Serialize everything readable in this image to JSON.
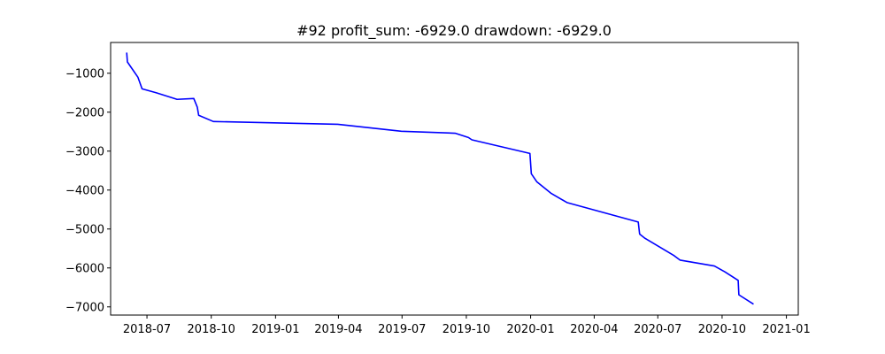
{
  "chart_data": {
    "type": "line",
    "title": "#92   profit_sum: -6929.0 drawdown: -6929.0",
    "xlabel": "",
    "ylabel": "",
    "grid": false,
    "legend": "none",
    "line_color": "#0000ff",
    "xlim": [
      "2018-05-10",
      "2021-01-18"
    ],
    "ylim": [
      -7210,
      -210
    ],
    "x_ticks": [
      "2018-07",
      "2018-10",
      "2019-01",
      "2019-04",
      "2019-07",
      "2019-10",
      "2020-01",
      "2020-04",
      "2020-07",
      "2020-10",
      "2021-01"
    ],
    "y_ticks": [
      -1000,
      -2000,
      -3000,
      -4000,
      -5000,
      -6000,
      -7000
    ],
    "y_tick_labels": [
      "−1000",
      "−2000",
      "−3000",
      "−4000",
      "−5000",
      "−6000",
      "−7000"
    ],
    "series": [
      {
        "x": [
          "2018-06-02",
          "2018-06-03",
          "2018-06-18",
          "2018-06-24",
          "2018-07-14",
          "2018-08-13",
          "2018-09-06",
          "2018-09-11",
          "2018-09-13",
          "2018-10-04",
          "2019-03-31",
          "2019-06-30",
          "2019-09-15",
          "2019-10-04",
          "2019-10-09",
          "2019-12-31",
          "2020-01-02",
          "2020-01-10",
          "2020-01-30",
          "2020-02-22",
          "2020-06-03",
          "2020-06-05",
          "2020-06-12",
          "2020-07-24",
          "2020-08-02",
          "2020-09-20",
          "2020-10-05",
          "2020-10-24",
          "2020-10-25",
          "2020-11-15"
        ],
        "values": [
          -470,
          -710,
          -1100,
          -1400,
          -1500,
          -1670,
          -1650,
          -1870,
          -2080,
          -2240,
          -2310,
          -2490,
          -2540,
          -2650,
          -2710,
          -3060,
          -3580,
          -3790,
          -4080,
          -4320,
          -4820,
          -5130,
          -5230,
          -5680,
          -5800,
          -5950,
          -6100,
          -6320,
          -6690,
          -6929
        ]
      }
    ]
  }
}
